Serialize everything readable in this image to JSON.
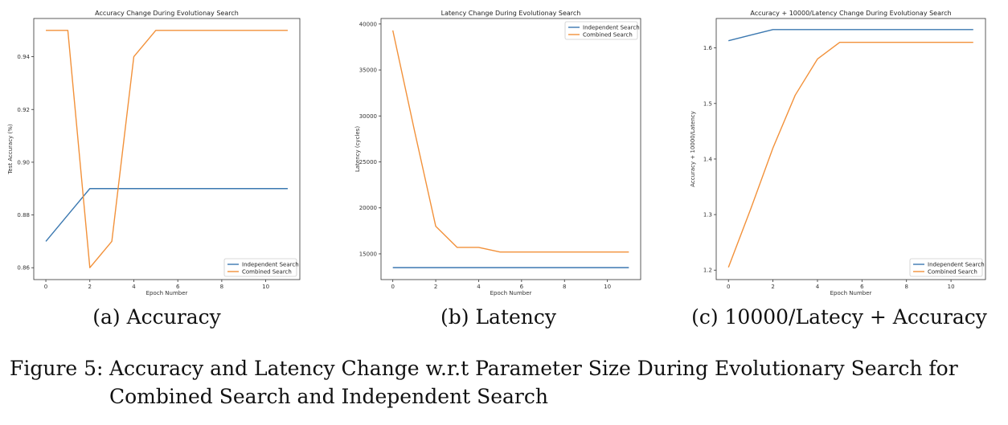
{
  "colors": {
    "independent": "#3b78b0",
    "combined": "#f2913a",
    "axis": "#333333"
  },
  "chart_data": [
    {
      "type": "line",
      "title": "Accuracy Change During Evolutionay Search",
      "xlabel": "Epoch Number",
      "ylabel": "Test Accuracy (%)",
      "xlim": [
        -0.55,
        11.55
      ],
      "ylim": [
        0.8555,
        0.9545
      ],
      "xticks": [
        0,
        2,
        4,
        6,
        8,
        10
      ],
      "yticks": [
        0.86,
        0.88,
        0.9,
        0.92,
        0.94
      ],
      "ytick_labels": [
        "0.86",
        "0.88",
        "0.90",
        "0.92",
        "0.94"
      ],
      "legend_position": "lower right",
      "series": [
        {
          "name": "Independent Search",
          "x": [
            0,
            1,
            2,
            3,
            4,
            5,
            6,
            7,
            8,
            9,
            10,
            11
          ],
          "values": [
            0.87,
            0.88,
            0.89,
            0.89,
            0.89,
            0.89,
            0.89,
            0.89,
            0.89,
            0.89,
            0.89,
            0.89
          ]
        },
        {
          "name": "Combined Search",
          "x": [
            0,
            1,
            2,
            3,
            4,
            5,
            6,
            7,
            8,
            9,
            10,
            11
          ],
          "values": [
            0.95,
            0.95,
            0.86,
            0.87,
            0.94,
            0.95,
            0.95,
            0.95,
            0.95,
            0.95,
            0.95,
            0.95
          ]
        }
      ]
    },
    {
      "type": "line",
      "title": "Latency Change During Evolutionay Search",
      "xlabel": "Epoch Number",
      "ylabel": "Latency (cycles)",
      "xlim": [
        -0.55,
        11.55
      ],
      "ylim": [
        12200,
        40600
      ],
      "xticks": [
        0,
        2,
        4,
        6,
        8,
        10
      ],
      "yticks": [
        15000,
        20000,
        25000,
        30000,
        35000,
        40000
      ],
      "ytick_labels": [
        "15000",
        "20000",
        "25000",
        "30000",
        "35000",
        "40000"
      ],
      "legend_position": "upper right",
      "series": [
        {
          "name": "Independent Search",
          "x": [
            0,
            1,
            2,
            3,
            4,
            5,
            6,
            7,
            8,
            9,
            10,
            11
          ],
          "values": [
            13500,
            13500,
            13500,
            13500,
            13500,
            13500,
            13500,
            13500,
            13500,
            13500,
            13500,
            13500
          ]
        },
        {
          "name": "Combined Search",
          "x": [
            0,
            1,
            2,
            3,
            4,
            5,
            6,
            7,
            8,
            9,
            10,
            11
          ],
          "values": [
            39300,
            28500,
            18000,
            15700,
            15700,
            15200,
            15200,
            15200,
            15200,
            15200,
            15200,
            15200
          ]
        }
      ]
    },
    {
      "type": "line",
      "title": "Accuracy + 10000/Latency Change During Evolutionay Search",
      "xlabel": "Epoch Number",
      "ylabel": "Accuracy + 10000/Latency",
      "xlim": [
        -0.55,
        11.55
      ],
      "ylim": [
        1.183,
        1.653
      ],
      "xticks": [
        0,
        2,
        4,
        6,
        8,
        10
      ],
      "yticks": [
        1.2,
        1.3,
        1.4,
        1.5,
        1.6
      ],
      "ytick_labels": [
        "1.2",
        "1.3",
        "1.4",
        "1.5",
        "1.6"
      ],
      "legend_position": "lower right",
      "series": [
        {
          "name": "Independent Search",
          "x": [
            0,
            1,
            2,
            3,
            4,
            5,
            6,
            7,
            8,
            9,
            10,
            11
          ],
          "values": [
            1.613,
            1.623,
            1.633,
            1.633,
            1.633,
            1.633,
            1.633,
            1.633,
            1.633,
            1.633,
            1.633,
            1.633
          ]
        },
        {
          "name": "Combined Search",
          "x": [
            0,
            1,
            2,
            3,
            4,
            5,
            6,
            7,
            8,
            9,
            10,
            11
          ],
          "values": [
            1.205,
            1.31,
            1.42,
            1.515,
            1.58,
            1.61,
            1.61,
            1.61,
            1.61,
            1.61,
            1.61,
            1.61
          ]
        }
      ]
    }
  ],
  "subcaptions": [
    "(a) Accuracy",
    "(b) Latency",
    "(c) 10000/Latecy + Accuracy"
  ],
  "caption": {
    "label": "Figure 5:",
    "line1": "Accuracy and Latency Change w.r.t Parameter Size During Evolutionary Search for",
    "line2": "Combined Search and Independent Search"
  }
}
